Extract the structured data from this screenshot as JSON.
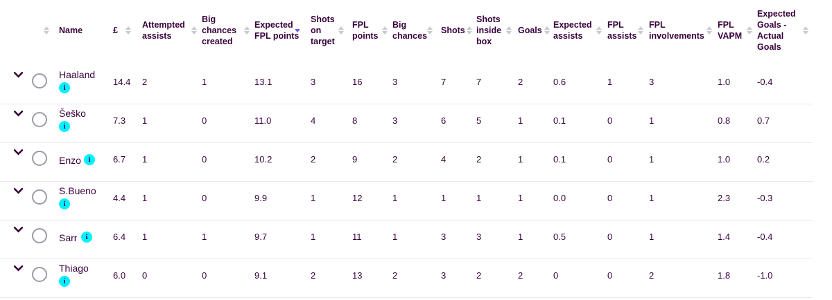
{
  "columns": [
    {
      "key": "name",
      "label_lines": [
        "Name"
      ],
      "sortable": true
    },
    {
      "key": "price",
      "label_lines": [
        "£"
      ],
      "sortable": true
    },
    {
      "key": "attempted_assists",
      "label_lines": [
        "Attempted",
        "assists"
      ],
      "sortable": true
    },
    {
      "key": "big_chances_created",
      "label_lines": [
        "Big",
        "chances",
        "created"
      ],
      "sortable": true
    },
    {
      "key": "xfpl",
      "label_lines": [
        "Expected",
        "FPL points"
      ],
      "sortable": true,
      "sorted": "desc"
    },
    {
      "key": "shots_on_target",
      "label_lines": [
        "Shots",
        "on",
        "target"
      ],
      "sortable": true
    },
    {
      "key": "fpl_points",
      "label_lines": [
        "FPL",
        "points"
      ],
      "sortable": true
    },
    {
      "key": "big_chances",
      "label_lines": [
        "Big",
        "chances"
      ],
      "sortable": true
    },
    {
      "key": "shots",
      "label_lines": [
        "Shots"
      ],
      "sortable": true
    },
    {
      "key": "shots_inside_box",
      "label_lines": [
        "Shots",
        "inside",
        "box"
      ],
      "sortable": true
    },
    {
      "key": "goals",
      "label_lines": [
        "Goals"
      ],
      "sortable": true
    },
    {
      "key": "expected_assists",
      "label_lines": [
        "Expected",
        "assists"
      ],
      "sortable": true
    },
    {
      "key": "fpl_assists",
      "label_lines": [
        "FPL",
        "assists"
      ],
      "sortable": true
    },
    {
      "key": "fpl_involvements",
      "label_lines": [
        "FPL",
        "involvements"
      ],
      "sortable": true
    },
    {
      "key": "fpl_vapm",
      "label_lines": [
        "FPL",
        "VAPM"
      ],
      "sortable": true
    },
    {
      "key": "xg_minus_goals",
      "label_lines": [
        "Expected",
        "Goals -",
        "Actual",
        "Goals"
      ],
      "sortable": true
    }
  ],
  "rows": [
    {
      "name": "Haaland",
      "info_badge": "i",
      "values": [
        "14.4",
        "2",
        "1",
        "13.1",
        "3",
        "16",
        "3",
        "7",
        "7",
        "2",
        "0.6",
        "1",
        "3",
        "1.0",
        "-0.4"
      ]
    },
    {
      "name": "Šeško",
      "info_badge": "i",
      "values": [
        "7.3",
        "1",
        "0",
        "11.0",
        "4",
        "8",
        "3",
        "6",
        "5",
        "1",
        "0.1",
        "0",
        "1",
        "0.8",
        "0.7"
      ]
    },
    {
      "name": "Enzo",
      "info_badge": "i",
      "values": [
        "6.7",
        "1",
        "0",
        "10.2",
        "2",
        "9",
        "2",
        "4",
        "2",
        "1",
        "0.1",
        "0",
        "1",
        "1.0",
        "0.2"
      ]
    },
    {
      "name": "S.Bueno",
      "info_badge": "i",
      "values": [
        "4.4",
        "1",
        "0",
        "9.9",
        "1",
        "12",
        "1",
        "1",
        "1",
        "1",
        "0.0",
        "0",
        "1",
        "2.3",
        "-0.3"
      ]
    },
    {
      "name": "Sarr",
      "info_badge": "i",
      "values": [
        "6.4",
        "1",
        "1",
        "9.7",
        "1",
        "11",
        "1",
        "3",
        "3",
        "1",
        "0.5",
        "0",
        "1",
        "1.4",
        "-0.4"
      ]
    },
    {
      "name": "Thiago",
      "info_badge": "i",
      "values": [
        "6.0",
        "0",
        "0",
        "9.1",
        "2",
        "13",
        "2",
        "3",
        "2",
        "2",
        "0",
        "0",
        "2",
        "1.8",
        "-1.0"
      ]
    }
  ],
  "colors": {
    "text": "#37003c",
    "info_badge": "#05f0ff",
    "sort_active": "#6e5bff",
    "divider": "#e8e8ee"
  }
}
